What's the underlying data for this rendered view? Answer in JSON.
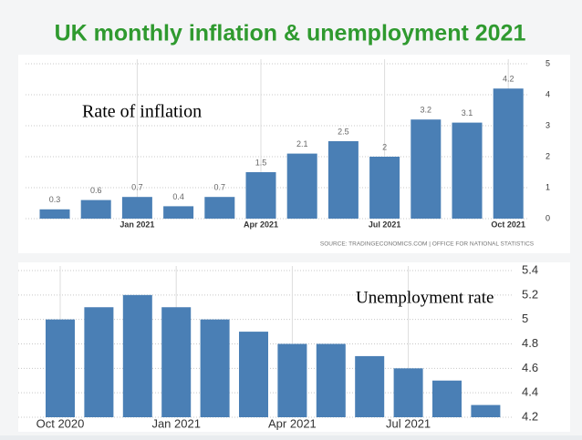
{
  "title": "UK monthly inflation & unemployment  2021",
  "chart_data": [
    {
      "type": "bar",
      "annotation": "Rate of inflation",
      "categories": [
        null,
        null,
        "Jan 2021",
        null,
        null,
        "Apr 2021",
        null,
        null,
        "Jul 2021",
        null,
        null,
        "Oct 2021"
      ],
      "values": [
        0.3,
        0.6,
        0.7,
        0.4,
        0.7,
        1.5,
        2.1,
        2.5,
        2,
        3.2,
        3.1,
        4.2
      ],
      "color": "#4a7fb5",
      "ylim": [
        0,
        5
      ],
      "yticks": [
        0,
        1,
        2,
        3,
        4,
        5
      ],
      "grid": true,
      "value_labels_shown": true,
      "source": "SOURCE: TRADINGECONOMICS.COM | OFFICE FOR NATIONAL STATISTICS"
    },
    {
      "type": "bar",
      "annotation": "Unemployment rate",
      "categories": [
        "Oct 2020",
        null,
        null,
        "Jan 2021",
        null,
        null,
        "Apr 2021",
        null,
        null,
        "Jul 2021",
        null,
        null
      ],
      "values": [
        5.0,
        5.1,
        5.2,
        5.1,
        5.0,
        4.9,
        4.8,
        4.8,
        4.7,
        4.6,
        4.5,
        4.3
      ],
      "color": "#4a7fb5",
      "ylim": [
        4.2,
        5.4
      ],
      "yticks": [
        4.2,
        4.4,
        4.6,
        4.8,
        5,
        5.2,
        5.4
      ],
      "grid": true,
      "value_labels_shown": false
    }
  ]
}
